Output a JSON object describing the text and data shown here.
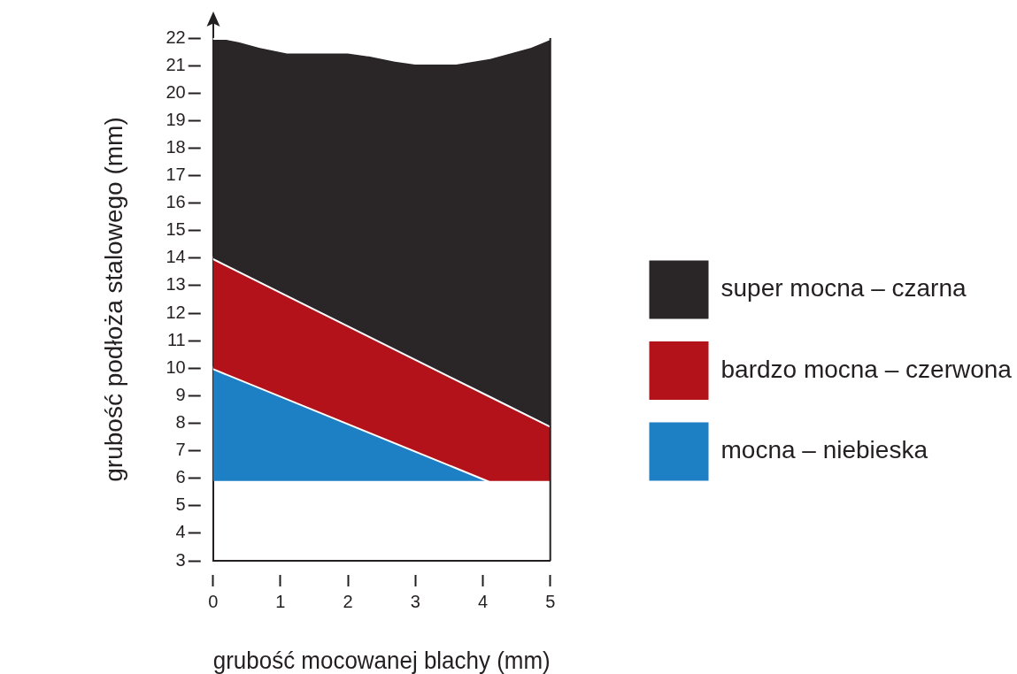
{
  "chart_data": {
    "type": "area",
    "xlabel": "grubość mocowanej blachy (mm)",
    "ylabel": "grubość podłoża stalowego (mm)",
    "xlim": [
      0,
      5
    ],
    "xticks": [
      0,
      1,
      2,
      3,
      4,
      5
    ],
    "ylim": [
      3,
      22
    ],
    "yticks": [
      3,
      4,
      5,
      6,
      7,
      8,
      9,
      10,
      11,
      12,
      13,
      14,
      15,
      16,
      17,
      18,
      19,
      20,
      21,
      22
    ],
    "legend": "right",
    "marker": "none",
    "series": [
      {
        "name": "super mocna – czarna",
        "color": "#2a2526",
        "x": [
          0,
          0.2,
          0.4,
          0.7,
          1.1,
          1.6,
          2.0,
          2.3,
          2.7,
          3.0,
          3.3,
          3.6,
          4.1,
          4.4,
          4.7,
          5
        ],
        "values": [
          22.0,
          22.0,
          21.9,
          21.7,
          21.5,
          21.5,
          21.5,
          21.4,
          21.2,
          21.1,
          21.1,
          21.1,
          21.3,
          21.5,
          21.7,
          22.0
        ]
      },
      {
        "name": "bardzo mocna – czerwona",
        "color": "#b3121b",
        "x": [
          0,
          4.1,
          5
        ],
        "values": [
          14,
          9.0,
          7.9
        ]
      },
      {
        "name": "mocna – niebieska",
        "color": "#1d7fc4",
        "x": [
          0,
          4.1,
          5
        ],
        "values": [
          10,
          5.9,
          5.9
        ]
      }
    ]
  }
}
